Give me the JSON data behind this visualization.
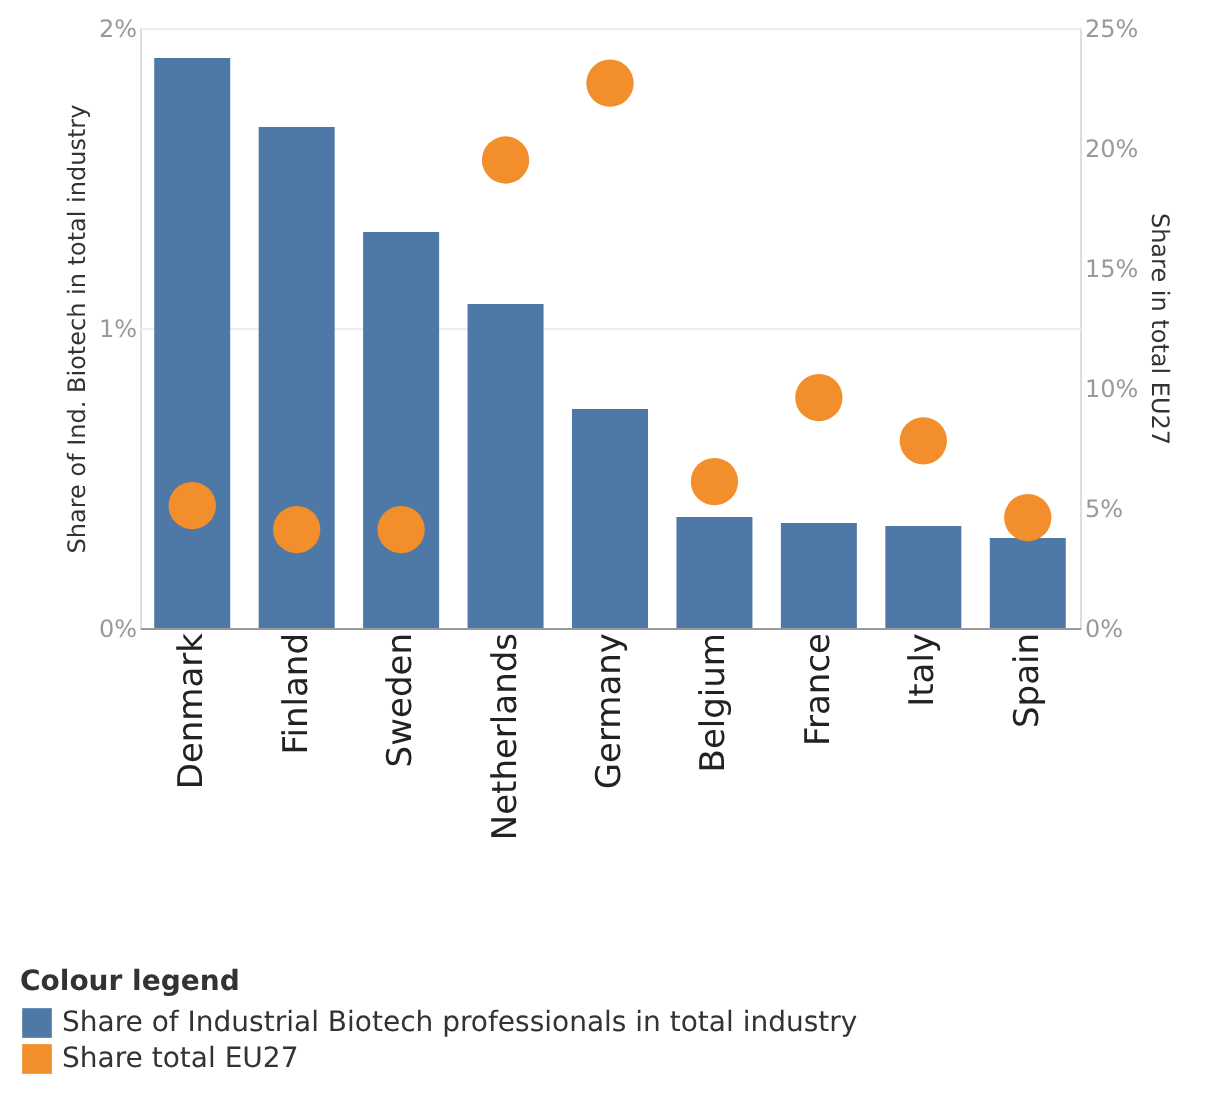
{
  "chart_data": {
    "type": "bar",
    "categories": [
      "Denmark",
      "Finland",
      "Sweden",
      "Netherlands",
      "Germany",
      "Belgium",
      "France",
      "Italy",
      "Spain"
    ],
    "ylabel": "Share of Ind. Biotech in total industry",
    "y2label": "Share in total EU27",
    "legend_title": "Colour legend",
    "ylim": [
      0,
      2
    ],
    "yticks": [
      {
        "value": 0,
        "label": "0%"
      },
      {
        "value": 1,
        "label": "1%"
      },
      {
        "value": 2,
        "label": "2%"
      }
    ],
    "y2lim": [
      0,
      25
    ],
    "y2ticks": [
      {
        "value": 0,
        "label": "0%"
      },
      {
        "value": 5,
        "label": "5%"
      },
      {
        "value": 10,
        "label": "10%"
      },
      {
        "value": 15,
        "label": "15%"
      },
      {
        "value": 20,
        "label": "20%"
      },
      {
        "value": 25,
        "label": "25%"
      }
    ],
    "grid": "y",
    "legend": "bottom left",
    "marker": "circle",
    "series": [
      {
        "name": "Share of Industrial Biotech professionals in total industry",
        "color": "#4e79a7",
        "values": [
          1.9,
          1.67,
          1.32,
          1.08,
          0.73,
          0.37,
          0.35,
          0.34,
          0.3
        ]
      },
      {
        "name": "Share total EU27",
        "type": "scatter",
        "axis": "y2",
        "color": "#f28e2b",
        "values": [
          5.1,
          4.1,
          4.1,
          19.5,
          22.7,
          6.1,
          9.6,
          7.8,
          4.6
        ]
      }
    ]
  }
}
